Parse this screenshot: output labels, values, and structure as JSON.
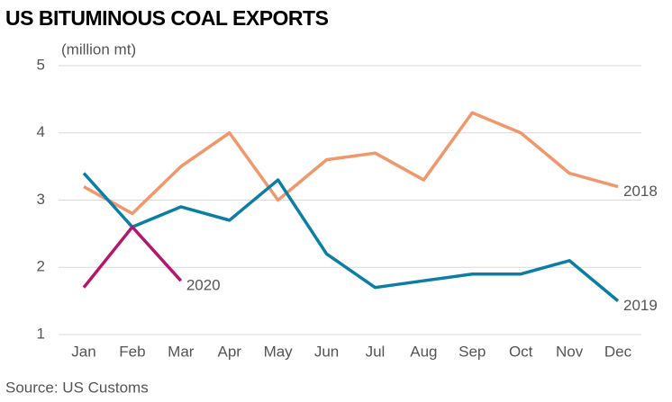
{
  "chart_data": {
    "type": "line",
    "title": "US BITUMINOUS COAL EXPORTS",
    "y_label": "(million mt)",
    "categories": [
      "Jan",
      "Feb",
      "Mar",
      "Apr",
      "May",
      "Jun",
      "Jul",
      "Aug",
      "Sep",
      "Oct",
      "Nov",
      "Dec"
    ],
    "series": [
      {
        "name": "2018",
        "color": "#f0976b",
        "values": [
          3.2,
          2.8,
          3.5,
          4.0,
          3.0,
          3.6,
          3.7,
          3.3,
          4.3,
          4.0,
          3.4,
          3.2
        ]
      },
      {
        "name": "2019",
        "color": "#0a7ea4",
        "values": [
          3.4,
          2.6,
          2.9,
          2.7,
          3.3,
          2.2,
          1.7,
          1.8,
          1.9,
          1.9,
          2.1,
          1.5
        ]
      },
      {
        "name": "2020",
        "color": "#b5176d",
        "values": [
          1.7,
          2.6,
          1.8,
          null,
          null,
          null,
          null,
          null,
          null,
          null,
          null,
          null
        ]
      }
    ],
    "ylim": [
      1,
      5
    ],
    "yticks": [
      1,
      2,
      3,
      4,
      5
    ],
    "grid": true,
    "source": "Source: US Customs"
  }
}
